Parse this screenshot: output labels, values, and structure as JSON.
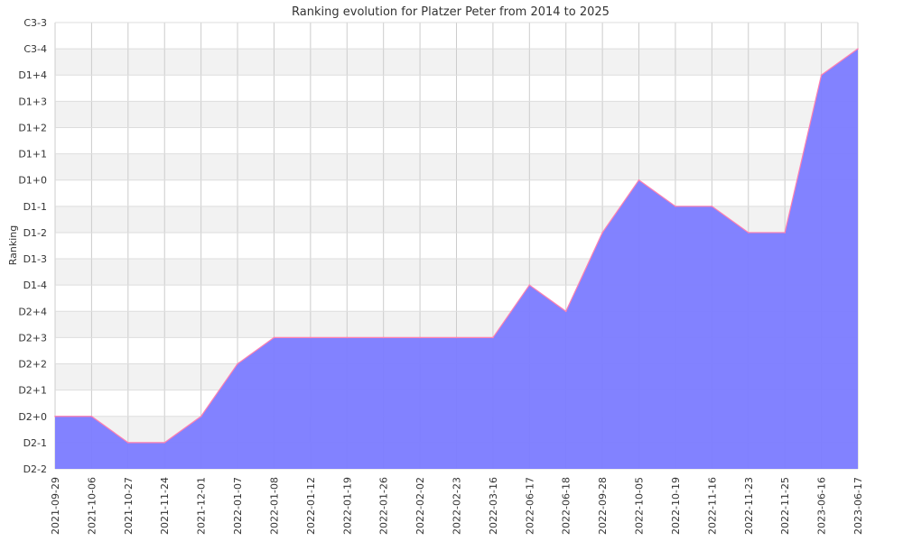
{
  "chart_data": {
    "type": "area",
    "title": "Ranking evolution for Platzer Peter from 2014 to 2025",
    "xlabel": "",
    "ylabel": "Ranking",
    "y_levels": [
      "D2-2",
      "D2-1",
      "D2+0",
      "D2+1",
      "D2+2",
      "D2+3",
      "D2+4",
      "D1-4",
      "D1-3",
      "D1-2",
      "D1-1",
      "D1+0",
      "D1+1",
      "D1+2",
      "D1+3",
      "D1+4",
      "C3-4",
      "C3-3"
    ],
    "x": [
      "2021-09-29",
      "2021-10-06",
      "2021-10-27",
      "2021-11-24",
      "2021-12-01",
      "2022-01-07",
      "2022-01-08",
      "2022-01-12",
      "2022-01-19",
      "2022-01-26",
      "2022-02-02",
      "2022-02-23",
      "2022-03-16",
      "2022-06-17",
      "2022-06-18",
      "2022-09-28",
      "2022-10-05",
      "2022-10-19",
      "2022-11-16",
      "2022-11-23",
      "2022-11-25",
      "2023-06-16",
      "2023-06-17"
    ],
    "values": [
      "D2+0",
      "D2+0",
      "D2-1",
      "D2-1",
      "D2+0",
      "D2+2",
      "D2+3",
      "D2+3",
      "D2+3",
      "D2+3",
      "D2+3",
      "D2+3",
      "D2+3",
      "D1-4",
      "D2+4",
      "D1-2",
      "D1+0",
      "D1-1",
      "D1-1",
      "D1-2",
      "D1-2",
      "D1+4",
      "C3-4"
    ],
    "grid": true,
    "legend": "none",
    "colors": {
      "fill": "#7b7bff",
      "line": "#ff7fb0",
      "band": "#f2f2f2"
    }
  }
}
